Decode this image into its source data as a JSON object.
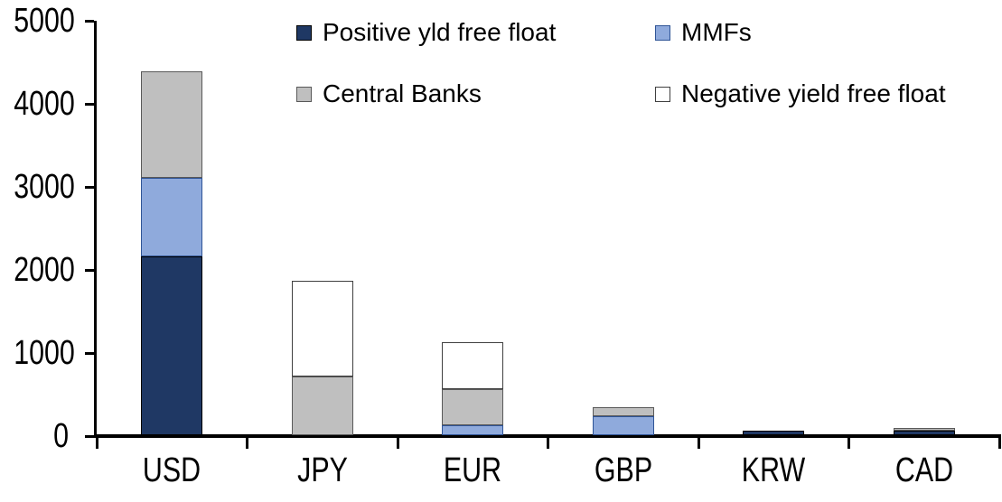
{
  "chart_data": {
    "type": "bar",
    "stacked": true,
    "title": "",
    "xlabel": "",
    "ylabel": "",
    "categories": [
      "USD",
      "JPY",
      "EUR",
      "GBP",
      "KRW",
      "CAD"
    ],
    "series": [
      {
        "name": "Positive yld free float",
        "color": "#1F3864",
        "border": "#000000",
        "values": [
          2150,
          0,
          0,
          0,
          50,
          55
        ]
      },
      {
        "name": "MMFs",
        "color": "#8FAADC",
        "border": "#2F5496",
        "values": [
          950,
          0,
          120,
          230,
          0,
          0
        ]
      },
      {
        "name": "Central Banks",
        "color": "#BFBFBF",
        "border": "#595959",
        "values": [
          1280,
          710,
          430,
          110,
          0,
          30
        ]
      },
      {
        "name": "Negative yield free float",
        "color": "#FFFFFF",
        "border": "#404040",
        "values": [
          0,
          1150,
          570,
          0,
          0,
          0
        ]
      }
    ],
    "ylim": [
      0,
      5000
    ],
    "ytick_step": 1000,
    "yticks": [
      "0",
      "1000",
      "2000",
      "3000",
      "4000",
      "5000"
    ],
    "grid": false,
    "legend_position": "top",
    "axis_color": "#000000",
    "text_color": "#000000"
  }
}
